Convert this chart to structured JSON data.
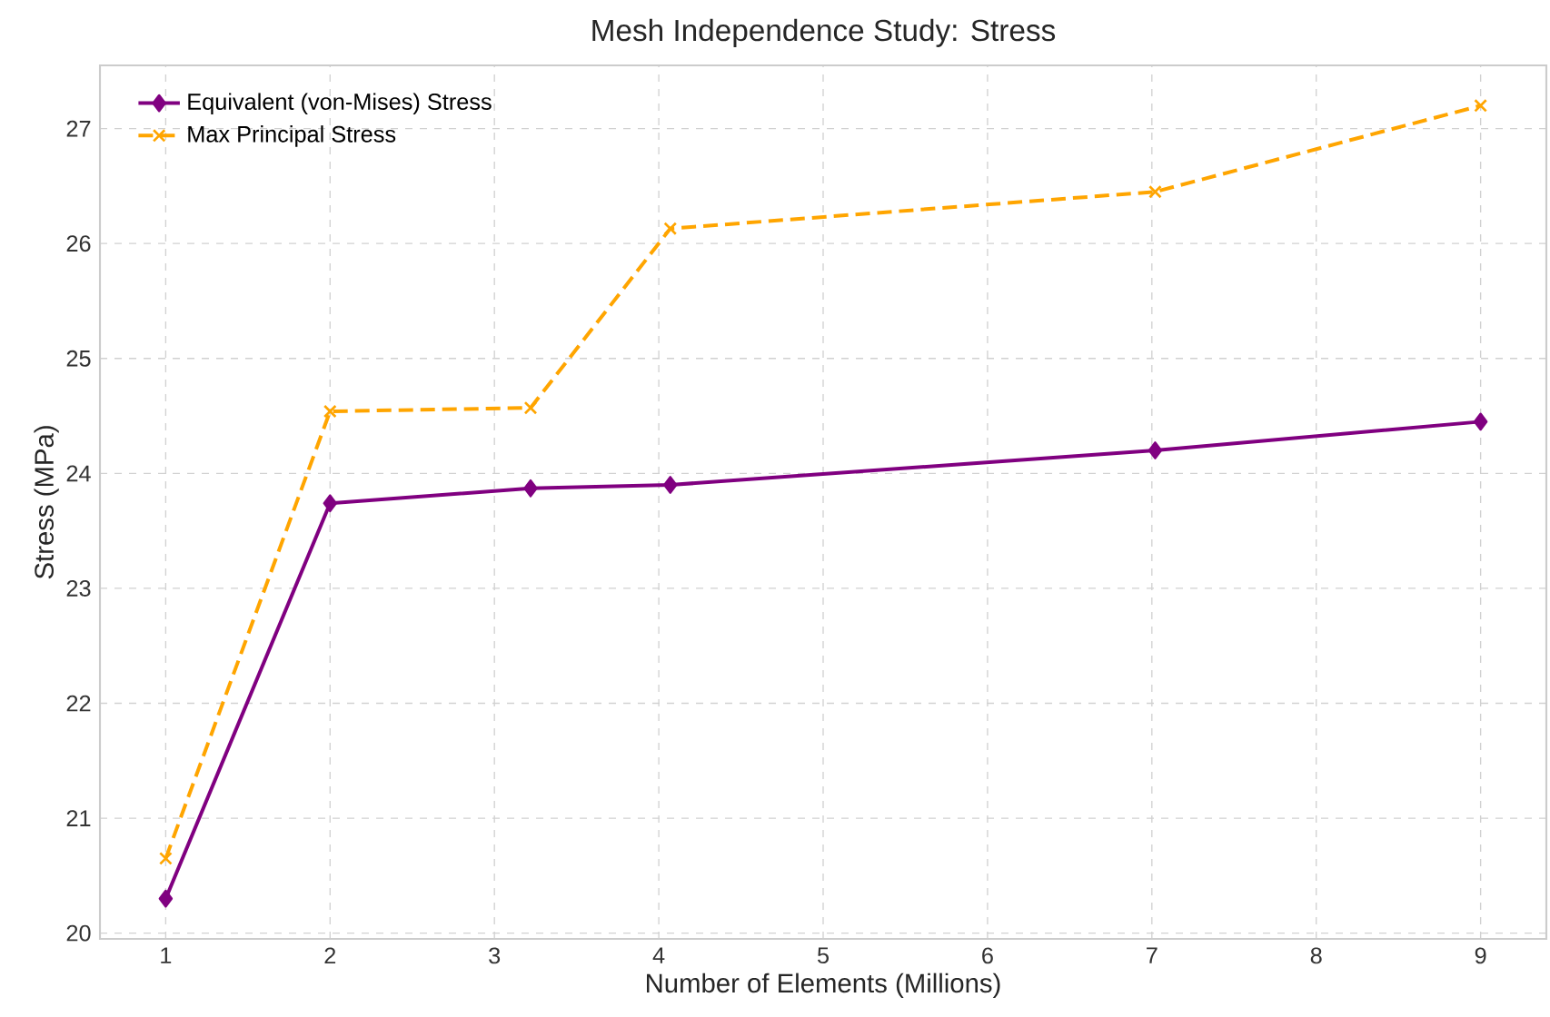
{
  "chart_data": {
    "type": "line",
    "title": "Mesh Independence Study: Stress",
    "xlabel": "Number of Elements (Millions)",
    "ylabel": "Stress (MPa)",
    "x": [
      1.0,
      2.0,
      3.22,
      4.07,
      7.02,
      9.0
    ],
    "series": [
      {
        "name": "Equivalent (von-Mises) Stress",
        "color": "#800080",
        "marker": "diamond",
        "line_style": "solid",
        "values": [
          20.3,
          23.74,
          23.87,
          23.9,
          24.2,
          24.45
        ]
      },
      {
        "name": "Max Principal Stress",
        "color": "#ffa500",
        "marker": "cross",
        "line_style": "dashed",
        "values": [
          20.65,
          24.54,
          24.57,
          26.13,
          26.45,
          27.2
        ]
      }
    ],
    "xlim": [
      0.6,
      9.4
    ],
    "ylim": [
      19.95,
      27.55
    ],
    "xticks": [
      1,
      2,
      3,
      4,
      5,
      6,
      7,
      8,
      9
    ],
    "yticks": [
      20,
      21,
      22,
      23,
      24,
      25,
      26,
      27
    ],
    "grid": true,
    "legend": "top left"
  }
}
